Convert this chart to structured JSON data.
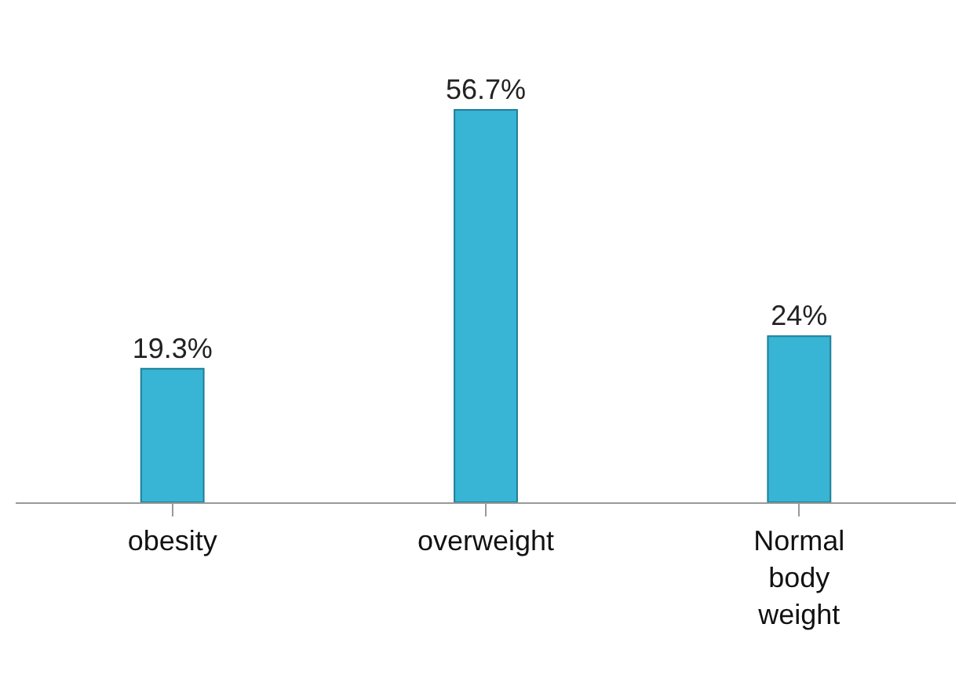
{
  "chart_data": {
    "type": "bar",
    "categories": [
      "obesity",
      "overweight",
      "Normal body weight"
    ],
    "values": [
      19.3,
      56.7,
      24
    ],
    "value_labels": [
      "19.3%",
      "56.7%",
      "24%"
    ],
    "color": "#38b4d4",
    "legend": false
  }
}
